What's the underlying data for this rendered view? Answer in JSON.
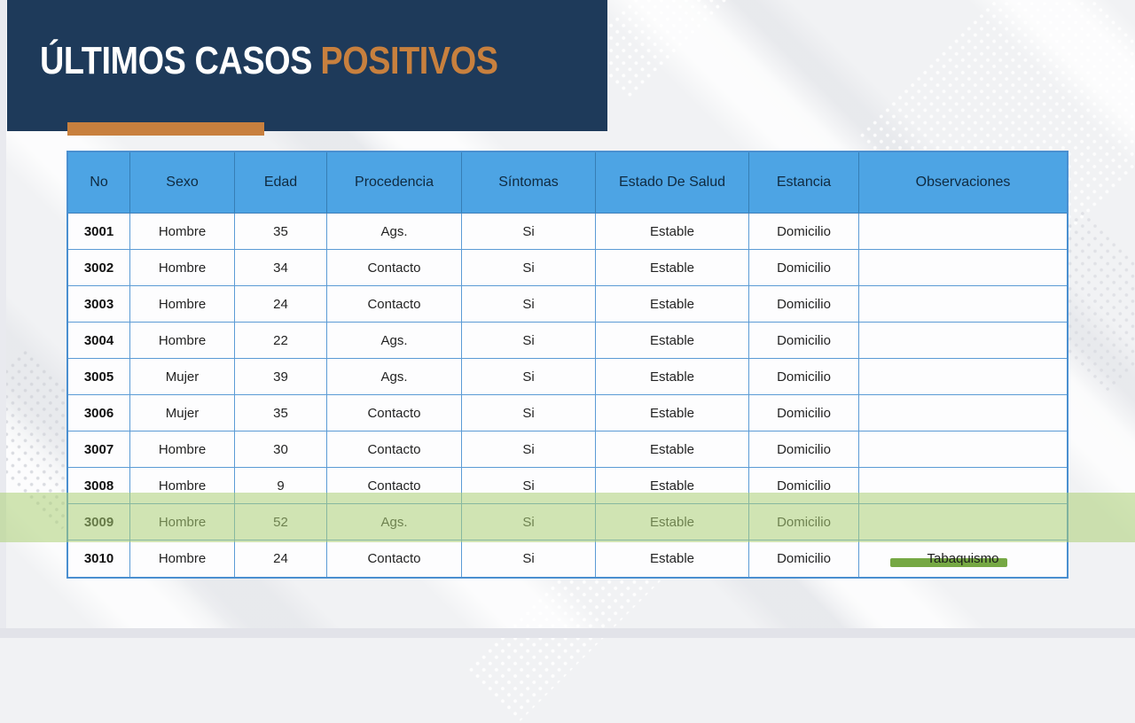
{
  "slide": {
    "title": {
      "text_primary": "ÚLTIMOS CASOS",
      "text_accent": "POSITIVOS"
    }
  },
  "table": {
    "columns": [
      "No",
      "Sexo",
      "Edad",
      "Procedencia",
      "Síntomas",
      "Estado De Salud",
      "Estancia",
      "Observaciones"
    ],
    "rows": [
      {
        "no": "3001",
        "sexo": "Hombre",
        "edad": "35",
        "procedencia": "Ags.",
        "sintomas": "Si",
        "estado": "Estable",
        "estancia": "Domicilio",
        "observaciones": ""
      },
      {
        "no": "3002",
        "sexo": "Hombre",
        "edad": "34",
        "procedencia": "Contacto",
        "sintomas": "Si",
        "estado": "Estable",
        "estancia": "Domicilio",
        "observaciones": ""
      },
      {
        "no": "3003",
        "sexo": "Hombre",
        "edad": "24",
        "procedencia": "Contacto",
        "sintomas": "Si",
        "estado": "Estable",
        "estancia": "Domicilio",
        "observaciones": ""
      },
      {
        "no": "3004",
        "sexo": "Hombre",
        "edad": "22",
        "procedencia": "Ags.",
        "sintomas": "Si",
        "estado": "Estable",
        "estancia": "Domicilio",
        "observaciones": ""
      },
      {
        "no": "3005",
        "sexo": "Mujer",
        "edad": "39",
        "procedencia": "Ags.",
        "sintomas": "Si",
        "estado": "Estable",
        "estancia": "Domicilio",
        "observaciones": ""
      },
      {
        "no": "3006",
        "sexo": "Mujer",
        "edad": "35",
        "procedencia": "Contacto",
        "sintomas": "Si",
        "estado": "Estable",
        "estancia": "Domicilio",
        "observaciones": ""
      },
      {
        "no": "3007",
        "sexo": "Hombre",
        "edad": "30",
        "procedencia": "Contacto",
        "sintomas": "Si",
        "estado": "Estable",
        "estancia": "Domicilio",
        "observaciones": ""
      },
      {
        "no": "3008",
        "sexo": "Hombre",
        "edad": "9",
        "procedencia": "Contacto",
        "sintomas": "Si",
        "estado": "Estable",
        "estancia": "Domicilio",
        "observaciones": ""
      },
      {
        "no": "3009",
        "sexo": "Hombre",
        "edad": "52",
        "procedencia": "Ags.",
        "sintomas": "Si",
        "estado": "Estable",
        "estancia": "Domicilio",
        "observaciones": ""
      },
      {
        "no": "3010",
        "sexo": "Hombre",
        "edad": "24",
        "procedencia": "Contacto",
        "sintomas": "Si",
        "estado": "Estable",
        "estancia": "Domicilio",
        "observaciones": "Tabaquismo"
      }
    ],
    "highlighted_row_no": "3009"
  },
  "colors": {
    "navy": "#1e3a5a",
    "orange": "#c8803e",
    "header-blue": "#4da4e4",
    "border-blue": "#5b9bd5",
    "highlight-green": "#abce72",
    "marker-green": "#76a844",
    "background": "#f1f2f4"
  }
}
